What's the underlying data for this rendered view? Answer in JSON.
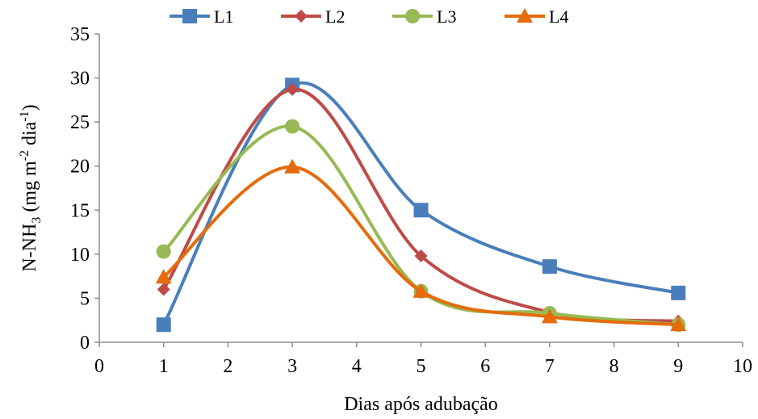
{
  "chart_data": {
    "type": "line",
    "smooth": true,
    "xlabel": "Dias após adubação",
    "ylabel": {
      "prefix": "N-NH",
      "sub": "3",
      "middle1": " (mg m",
      "sup1": "-2",
      "middle2": " dia",
      "sup2": "-1",
      "suffix": ")"
    },
    "xlim": [
      0,
      10
    ],
    "ylim": [
      0,
      35
    ],
    "xticks": [
      0,
      1,
      2,
      3,
      4,
      5,
      6,
      7,
      8,
      9,
      10
    ],
    "yticks": [
      0,
      5,
      10,
      15,
      20,
      25,
      30,
      35
    ],
    "grid": false,
    "legend_position": "top",
    "series": [
      {
        "name": "L1",
        "color": "#4a7ebb",
        "marker": "square",
        "x": [
          1,
          3,
          5,
          7,
          9
        ],
        "y": [
          2.0,
          29.2,
          15.0,
          8.6,
          5.6
        ]
      },
      {
        "name": "L2",
        "color": "#be4b48",
        "marker": "diamond",
        "x": [
          1,
          3,
          5,
          7,
          9
        ],
        "y": [
          6.0,
          28.7,
          9.8,
          3.4,
          2.4
        ]
      },
      {
        "name": "L3",
        "color": "#98b954",
        "marker": "circle",
        "x": [
          1,
          3,
          5,
          7,
          9
        ],
        "y": [
          10.3,
          24.5,
          5.8,
          3.3,
          2.0
        ]
      },
      {
        "name": "L4",
        "color": "#e46c0a",
        "marker": "triangle",
        "x": [
          1,
          3,
          5,
          7,
          9
        ],
        "y": [
          7.4,
          19.9,
          5.8,
          2.9,
          2.0
        ]
      }
    ]
  }
}
